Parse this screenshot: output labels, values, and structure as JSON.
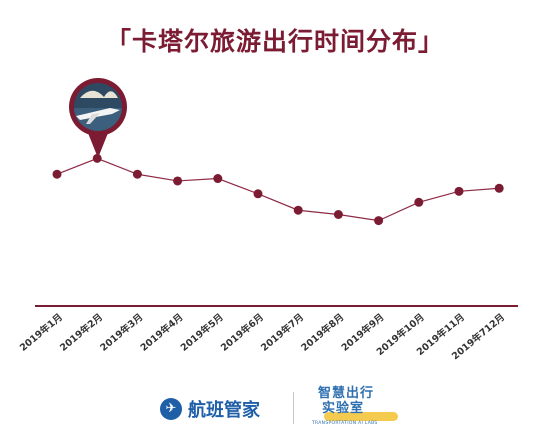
{
  "title": "「卡塔尔旅游出行时间分布」",
  "chart_data": {
    "type": "line",
    "categories": [
      "2019年1月",
      "2019年2月",
      "2019年3月",
      "2019年4月",
      "2019年5月",
      "2019年6月",
      "2019年7月",
      "2019年8月",
      "2019年9月",
      "2019年10月",
      "2019年11月",
      "2019年712月"
    ],
    "values": [
      216,
      242,
      216,
      205,
      209,
      184,
      157,
      150,
      140,
      170,
      188,
      193
    ],
    "ylim": [
      0,
      250
    ],
    "grid": false,
    "colors": {
      "line": "#8e2a45",
      "point": "#7b1c33",
      "axis": "#7b1c33"
    },
    "marker_icon": "airplane-photo-icon",
    "marker_month_index": 1
  },
  "footer": {
    "brand": "航班管家",
    "brand_icon": "hangban-logo-icon",
    "lab_line1": "智慧出行",
    "lab_line2": "实验室",
    "lab_sub": "TRANSPORTATION AI LABS"
  }
}
